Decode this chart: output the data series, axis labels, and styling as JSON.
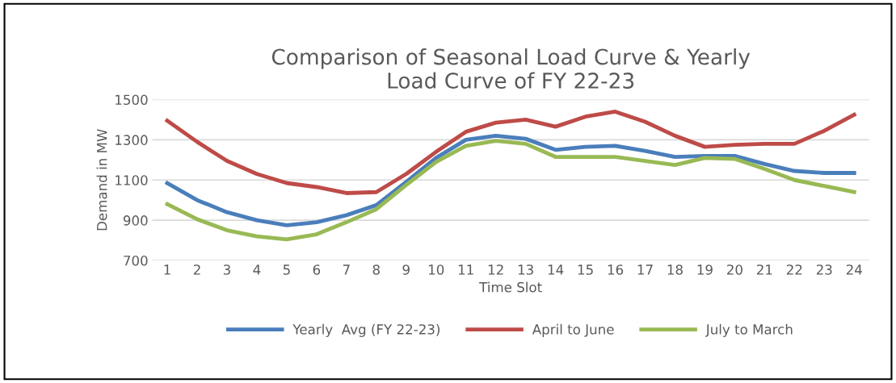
{
  "chart_data": {
    "type": "line",
    "title": "Comparison of Seasonal Load Curve & Yearly\nLoad Curve of FY 22-23",
    "xlabel": "Time Slot",
    "ylabel": "Demand in MW",
    "categories": [
      "1",
      "2",
      "3",
      "4",
      "5",
      "6",
      "7",
      "8",
      "9",
      "10",
      "11",
      "12",
      "13",
      "14",
      "15",
      "16",
      "17",
      "18",
      "19",
      "20",
      "21",
      "22",
      "23",
      "24"
    ],
    "series": [
      {
        "name": "Yearly  Avg (FY 22-23)",
        "color": "#4a7ebb",
        "values": [
          1085,
          1000,
          940,
          900,
          875,
          890,
          925,
          975,
          1090,
          1210,
          1300,
          1320,
          1305,
          1250,
          1265,
          1270,
          1245,
          1215,
          1220,
          1220,
          1180,
          1145,
          1135,
          1135
        ]
      },
      {
        "name": "April to June",
        "color": "#be4b48",
        "values": [
          1395,
          1290,
          1195,
          1130,
          1085,
          1065,
          1035,
          1040,
          1130,
          1240,
          1340,
          1385,
          1400,
          1365,
          1415,
          1440,
          1390,
          1320,
          1265,
          1275,
          1280,
          1280,
          1345,
          1425
        ]
      },
      {
        "name": "July to March",
        "color": "#98b954",
        "values": [
          980,
          905,
          850,
          820,
          805,
          830,
          890,
          955,
          1075,
          1190,
          1270,
          1295,
          1280,
          1215,
          1215,
          1215,
          1195,
          1175,
          1210,
          1205,
          1155,
          1100,
          1070,
          1040
        ]
      }
    ],
    "ylim": [
      700,
      1500
    ],
    "yticks": [
      700,
      900,
      1100,
      1300,
      1500
    ],
    "grid": "y",
    "legend": "bottom",
    "marker": "none",
    "line_style": "solid"
  }
}
